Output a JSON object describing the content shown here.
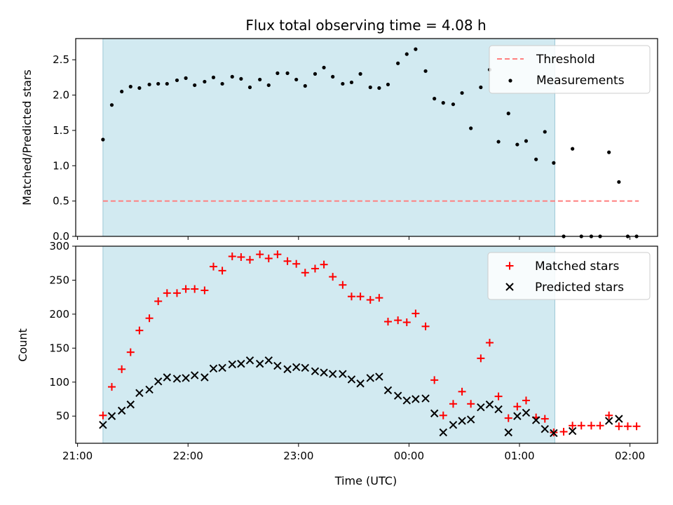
{
  "title": "Flux total observing time = 4.08 h",
  "xlabel": "Time (UTC)",
  "x_ticks": [
    "21:00",
    "22:00",
    "23:00",
    "00:00",
    "01:00",
    "02:00"
  ],
  "colors": {
    "shade": "#add8e6",
    "threshold": "#ff7f7f",
    "matched": "#ff0000",
    "predicted": "#000000",
    "measurements": "#000000"
  },
  "chart_data": [
    {
      "type": "scatter",
      "panel": "top",
      "ylabel": "Matched/Predicted stars",
      "ylim": [
        0,
        2.8
      ],
      "y_ticks": [
        0.0,
        0.5,
        1.0,
        1.5,
        2.0,
        2.5
      ],
      "y_tick_labels": [
        "0.0",
        "0.5",
        "1.0",
        "1.5",
        "2.0",
        "2.5"
      ],
      "x_unit": "hours after 21:00 UTC",
      "xlim": [
        -0.0167,
        5.25
      ],
      "observing_window": [
        0.23,
        4.32
      ],
      "legend_position": "top-right",
      "legend": [
        "Threshold",
        "Measurements"
      ],
      "threshold": {
        "name": "Threshold",
        "y": 0.5,
        "x_range": [
          0.23,
          5.08
        ],
        "style": "dashed"
      },
      "series": [
        {
          "name": "Measurements",
          "x": [
            0.23,
            0.31,
            0.4,
            0.48,
            0.56,
            0.65,
            0.73,
            0.81,
            0.9,
            0.98,
            1.06,
            1.15,
            1.23,
            1.31,
            1.4,
            1.48,
            1.56,
            1.65,
            1.73,
            1.81,
            1.9,
            1.98,
            2.06,
            2.15,
            2.23,
            2.31,
            2.4,
            2.48,
            2.56,
            2.65,
            2.73,
            2.81,
            2.9,
            2.98,
            3.06,
            3.15,
            3.23,
            3.31,
            3.4,
            3.48,
            3.56,
            3.65,
            3.73,
            3.81,
            3.9,
            3.98,
            4.06,
            4.15,
            4.23,
            4.31,
            4.4,
            4.48,
            4.56,
            4.65,
            4.73,
            4.81,
            4.9,
            4.98,
            5.06
          ],
          "y": [
            1.37,
            1.86,
            2.05,
            2.12,
            2.1,
            2.15,
            2.16,
            2.16,
            2.21,
            2.24,
            2.14,
            2.19,
            2.25,
            2.16,
            2.26,
            2.23,
            2.11,
            2.22,
            2.14,
            2.31,
            2.31,
            2.22,
            2.13,
            2.3,
            2.39,
            2.26,
            2.16,
            2.18,
            2.3,
            2.11,
            2.1,
            2.15,
            2.45,
            2.58,
            2.65,
            2.34,
            1.95,
            1.89,
            1.87,
            2.03,
            1.53,
            2.11,
            2.36,
            1.34,
            1.74,
            1.3,
            1.35,
            1.09,
            1.48,
            1.04,
            0.0,
            1.24,
            0.0,
            0.0,
            0.0,
            1.19,
            0.77,
            0.0,
            0.0
          ]
        }
      ]
    },
    {
      "type": "scatter",
      "panel": "bottom",
      "ylabel": "Count",
      "ylim": [
        10,
        300
      ],
      "y_ticks": [
        50,
        100,
        150,
        200,
        250,
        300
      ],
      "y_tick_labels": [
        "50",
        "100",
        "150",
        "200",
        "250",
        "300"
      ],
      "x_unit": "hours after 21:00 UTC",
      "xlim": [
        -0.0167,
        5.25
      ],
      "observing_window": [
        0.23,
        4.32
      ],
      "legend_position": "top-right",
      "legend": [
        "Matched stars",
        "Predicted stars"
      ],
      "series": [
        {
          "name": "Matched stars",
          "marker": "plus",
          "x": [
            0.23,
            0.31,
            0.4,
            0.48,
            0.56,
            0.65,
            0.73,
            0.81,
            0.9,
            0.98,
            1.06,
            1.15,
            1.23,
            1.31,
            1.4,
            1.48,
            1.56,
            1.65,
            1.73,
            1.81,
            1.9,
            1.98,
            2.06,
            2.15,
            2.23,
            2.31,
            2.4,
            2.48,
            2.56,
            2.65,
            2.73,
            2.81,
            2.9,
            2.98,
            3.06,
            3.15,
            3.23,
            3.31,
            3.4,
            3.48,
            3.56,
            3.65,
            3.73,
            3.81,
            3.9,
            3.98,
            4.06,
            4.15,
            4.23,
            4.31,
            4.4,
            4.48,
            4.56,
            4.65,
            4.73,
            4.81,
            4.9,
            4.98,
            5.06
          ],
          "y": [
            51,
            93,
            119,
            144,
            176,
            194,
            219,
            231,
            231,
            237,
            237,
            235,
            270,
            264,
            285,
            284,
            280,
            288,
            282,
            288,
            278,
            274,
            261,
            267,
            273,
            255,
            243,
            226,
            226,
            221,
            224,
            189,
            191,
            188,
            201,
            182,
            103,
            51,
            68,
            86,
            68,
            135,
            158,
            79,
            47,
            64,
            73,
            48,
            46,
            26,
            27,
            36,
            36,
            36,
            36,
            51,
            35,
            35,
            35
          ]
        },
        {
          "name": "Predicted stars",
          "marker": "x",
          "x": [
            0.23,
            0.31,
            0.4,
            0.48,
            0.56,
            0.65,
            0.73,
            0.81,
            0.9,
            0.98,
            1.06,
            1.15,
            1.23,
            1.31,
            1.4,
            1.48,
            1.56,
            1.65,
            1.73,
            1.81,
            1.9,
            1.98,
            2.06,
            2.15,
            2.23,
            2.31,
            2.4,
            2.48,
            2.56,
            2.65,
            2.73,
            2.81,
            2.9,
            2.98,
            3.06,
            3.15,
            3.23,
            3.31,
            3.4,
            3.48,
            3.56,
            3.65,
            3.73,
            3.81,
            3.9,
            3.98,
            4.06,
            4.15,
            4.23,
            4.31,
            4.48,
            4.81,
            4.9
          ],
          "y": [
            37,
            50,
            58,
            67,
            84,
            89,
            101,
            107,
            105,
            106,
            110,
            107,
            120,
            121,
            126,
            127,
            132,
            127,
            132,
            124,
            119,
            122,
            121,
            116,
            114,
            112,
            112,
            104,
            98,
            106,
            108,
            88,
            80,
            73,
            75,
            76,
            54,
            26,
            37,
            43,
            45,
            63,
            67,
            60,
            26,
            50,
            55,
            44,
            31,
            25,
            28,
            43,
            46
          ]
        }
      ]
    }
  ]
}
